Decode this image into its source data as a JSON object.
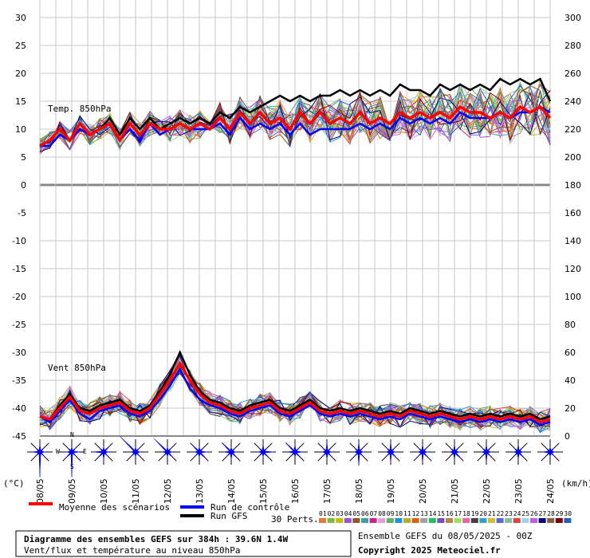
{
  "chart_data": {
    "type": "line",
    "title": "Diagramme des ensembles GEFS sur 384h : 39.6N 1.4W",
    "subtitle": "Vent/flux et température au niveau 850hPa",
    "run_info": "Ensemble GEFS du 08/05/2025 - 00Z",
    "copyright": "Copyright 2025 Meteociel.fr",
    "left_axis": {
      "unit": "(°C)",
      "ylim": [
        -45,
        30
      ],
      "ticks": [
        30,
        25,
        20,
        15,
        10,
        5,
        0,
        -5,
        -10,
        -15,
        -20,
        -25,
        -30,
        -35,
        -40,
        -45
      ]
    },
    "right_axis": {
      "unit": "(km/h)",
      "ylim": [
        0,
        300
      ],
      "ticks": [
        300,
        280,
        260,
        240,
        220,
        200,
        180,
        160,
        140,
        120,
        100,
        80,
        60,
        40,
        20,
        0
      ]
    },
    "x_dates": [
      "08/05",
      "09/05",
      "10/05",
      "11/05",
      "12/05",
      "13/05",
      "14/05",
      "15/05",
      "16/05",
      "17/05",
      "18/05",
      "19/05",
      "20/05",
      "21/05",
      "22/05",
      "23/05",
      "24/05"
    ],
    "temp_panel": {
      "label": "Temp. 850hPa",
      "mean": [
        7,
        8,
        10,
        8,
        11,
        9,
        10,
        11,
        8,
        11,
        9,
        11,
        10,
        10,
        11,
        10,
        11,
        10,
        12,
        10,
        13,
        11,
        13,
        11,
        12,
        10,
        13,
        11,
        13,
        11,
        12,
        11,
        13,
        11,
        12,
        11,
        13,
        12,
        13,
        12,
        13,
        12,
        14,
        13,
        13,
        12,
        13,
        12,
        14,
        13,
        14,
        12
      ],
      "control": [
        7,
        7,
        9,
        8,
        10,
        9,
        10,
        11,
        8,
        10,
        8,
        11,
        9,
        10,
        11,
        10,
        10,
        10,
        11,
        9,
        12,
        10,
        11,
        10,
        11,
        9,
        11,
        9,
        10,
        10,
        10,
        10,
        11,
        10,
        11,
        10,
        12,
        11,
        12,
        11,
        12,
        11,
        13,
        12,
        12,
        12,
        13,
        12,
        13,
        13,
        14,
        13
      ],
      "gfs": [
        7,
        8,
        10,
        8,
        11,
        9,
        10,
        12,
        9,
        12,
        10,
        12,
        10,
        11,
        12,
        11,
        12,
        11,
        13,
        12,
        14,
        13,
        14,
        15,
        16,
        15,
        16,
        15,
        16,
        16,
        17,
        16,
        17,
        16,
        17,
        16,
        18,
        17,
        17,
        16,
        18,
        17,
        18,
        17,
        18,
        17,
        19,
        18,
        19,
        18,
        19,
        15
      ]
    },
    "wind_panel": {
      "label": "Vent 850hPa",
      "mean": [
        14,
        12,
        20,
        28,
        18,
        16,
        20,
        22,
        24,
        18,
        16,
        20,
        30,
        40,
        52,
        40,
        30,
        24,
        22,
        18,
        16,
        20,
        22,
        24,
        18,
        16,
        20,
        24,
        18,
        16,
        18,
        16,
        18,
        16,
        14,
        16,
        14,
        18,
        16,
        14,
        16,
        14,
        12,
        14,
        12,
        14,
        12,
        14,
        12,
        14,
        10,
        12
      ],
      "control": [
        14,
        10,
        18,
        26,
        16,
        12,
        18,
        20,
        22,
        16,
        14,
        18,
        26,
        36,
        48,
        34,
        26,
        22,
        20,
        16,
        14,
        18,
        20,
        22,
        16,
        14,
        18,
        22,
        16,
        14,
        16,
        14,
        16,
        14,
        12,
        14,
        12,
        16,
        14,
        12,
        14,
        12,
        10,
        12,
        10,
        12,
        10,
        12,
        10,
        12,
        8,
        10
      ],
      "gfs": [
        14,
        12,
        22,
        30,
        20,
        18,
        22,
        24,
        26,
        20,
        18,
        22,
        32,
        44,
        60,
        44,
        32,
        26,
        24,
        20,
        18,
        22,
        24,
        26,
        20,
        18,
        22,
        26,
        20,
        18,
        20,
        18,
        20,
        18,
        16,
        18,
        16,
        20,
        18,
        16,
        18,
        16,
        14,
        16,
        14,
        16,
        14,
        16,
        14,
        16,
        12,
        14
      ]
    },
    "legend": {
      "mean": "Moyenne des scénarios",
      "control": "Run de contrôle",
      "gfs": "Run GFS",
      "perts_label": "30 Perts.",
      "perts": [
        "01",
        "02",
        "03",
        "04",
        "05",
        "06",
        "07",
        "08",
        "09",
        "10",
        "11",
        "12",
        "13",
        "14",
        "15",
        "16",
        "17",
        "18",
        "19",
        "20",
        "21",
        "22",
        "23",
        "24",
        "25",
        "26",
        "27",
        "28",
        "29",
        "30"
      ],
      "colors": {
        "mean": "#ff0000",
        "control": "#0000ff",
        "gfs": "#000000",
        "perts": [
          "#e5793a",
          "#7dbd3b",
          "#c0c000",
          "#9c4fd6",
          "#8a5a2b",
          "#3fa0a0",
          "#d02090",
          "#e0a0e0",
          "#60b060",
          "#2090e0",
          "#b0b030",
          "#e06010",
          "#a0a0a0",
          "#20c060",
          "#7050c0",
          "#c08040",
          "#a0e060",
          "#f060a0",
          "#404040",
          "#30a0d0",
          "#d0c030",
          "#6060e0",
          "#80c0a0",
          "#e04040",
          "#a0d0f0",
          "#c060e0",
          "#000080",
          "#806040",
          "#800000",
          "#2060c0"
        ]
      }
    },
    "rose_labels": {
      "n": "N",
      "e": "E",
      "s": "S",
      "w": "W"
    },
    "wind_roses": [
      {
        "N": 2,
        "NE": 1,
        "E": 1,
        "SE": 1,
        "S": 8,
        "SW": 1,
        "W": 2,
        "NW": 1
      },
      {
        "N": 1,
        "NE": 1,
        "E": 2,
        "SE": 1,
        "S": 8,
        "SW": 2,
        "W": 1,
        "NW": 1
      },
      {
        "N": 1,
        "NE": 2,
        "E": 1,
        "SE": 1,
        "S": 2,
        "SW": 2,
        "W": 3,
        "NW": 1
      },
      {
        "N": 1,
        "NE": 1,
        "E": 1,
        "SE": 1,
        "S": 1,
        "SW": 1,
        "W": 1,
        "NW": 7
      },
      {
        "N": 1,
        "NE": 1,
        "E": 1,
        "SE": 2,
        "S": 1,
        "SW": 1,
        "W": 1,
        "NW": 6
      },
      {
        "N": 1,
        "NE": 1,
        "E": 2,
        "SE": 3,
        "S": 1,
        "SW": 1,
        "W": 1,
        "NW": 3
      },
      {
        "N": 1,
        "NE": 1,
        "E": 1,
        "SE": 2,
        "S": 2,
        "SW": 1,
        "W": 2,
        "NW": 4
      },
      {
        "N": 2,
        "NE": 1,
        "E": 3,
        "SE": 2,
        "S": 1,
        "SW": 1,
        "W": 1,
        "NW": 1
      },
      {
        "N": 2,
        "NE": 1,
        "E": 2,
        "SE": 2,
        "S": 1,
        "SW": 1,
        "W": 2,
        "NW": 4
      },
      {
        "N": 3,
        "NE": 1,
        "E": 1,
        "SE": 1,
        "S": 2,
        "SW": 1,
        "W": 1,
        "NW": 1
      },
      {
        "N": 3,
        "NE": 1,
        "E": 1,
        "SE": 1,
        "S": 4,
        "SW": 1,
        "W": 1,
        "NW": 1
      },
      {
        "N": 3,
        "NE": 1,
        "E": 1,
        "SE": 2,
        "S": 3,
        "SW": 1,
        "W": 1,
        "NW": 1
      },
      {
        "N": 2,
        "NE": 1,
        "E": 1,
        "SE": 2,
        "S": 3,
        "SW": 1,
        "W": 1,
        "NW": 1
      },
      {
        "N": 2,
        "NE": 1,
        "E": 1,
        "SE": 3,
        "S": 2,
        "SW": 1,
        "W": 1,
        "NW": 1
      },
      {
        "N": 2,
        "NE": 1,
        "E": 1,
        "SE": 1,
        "S": 3,
        "SW": 1,
        "W": 1,
        "NW": 1
      },
      {
        "N": 2,
        "NE": 1,
        "E": 1,
        "SE": 2,
        "S": 2,
        "SW": 1,
        "W": 1,
        "NW": 1
      },
      {
        "N": 1,
        "NE": 1,
        "E": 1,
        "SE": 1,
        "S": 1,
        "SW": 1,
        "W": 2,
        "NW": 1
      }
    ]
  }
}
